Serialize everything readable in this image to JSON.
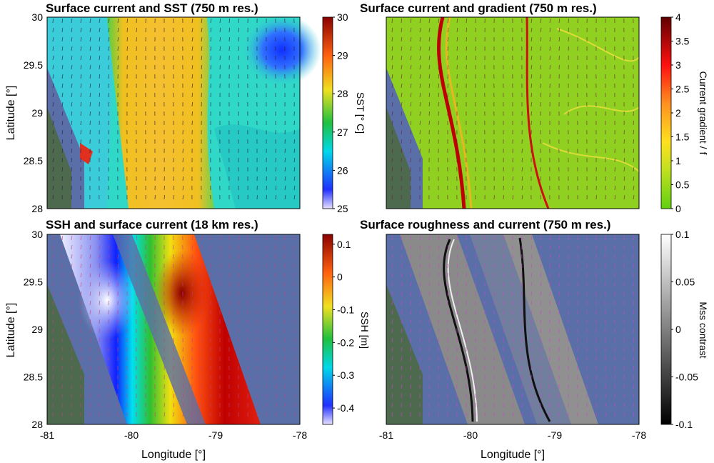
{
  "chart_data": [
    {
      "type": "heatmap",
      "title": "Surface current and SST (750 m res.)",
      "xlabel": "",
      "ylabel": "Latitude [°]",
      "xlim": [
        -81,
        -78
      ],
      "ylim": [
        28,
        30
      ],
      "yticks": [
        "28",
        "28.5",
        "29",
        "29.5",
        "30"
      ],
      "xticks": [],
      "colorbar": {
        "label": "SST [° C]",
        "range": [
          25,
          30
        ],
        "ticks": [
          "25",
          "26",
          "27",
          "28",
          "29",
          "30"
        ],
        "colormap": "jet"
      }
    },
    {
      "type": "heatmap",
      "title": "Surface current and gradient (750 m res.)",
      "xlabel": "",
      "ylabel": "",
      "xlim": [
        -81,
        -78
      ],
      "ylim": [
        28,
        30
      ],
      "yticks": [],
      "xticks": [],
      "colorbar": {
        "label": "Current gradient / f",
        "range": [
          0,
          4
        ],
        "ticks": [
          "0",
          "0.5",
          "1",
          "1.5",
          "2",
          "2.5",
          "3",
          "3.5",
          "4"
        ],
        "colormap": "green-yellow-red"
      }
    },
    {
      "type": "heatmap",
      "title": "SSH and surface current (18 km res.)",
      "xlabel": "Longitude [°]",
      "ylabel": "Latitude [°]",
      "xlim": [
        -81,
        -78
      ],
      "ylim": [
        28,
        30
      ],
      "yticks": [
        "28",
        "28.5",
        "29",
        "29.5",
        "30"
      ],
      "xticks": [
        "-81",
        "-80",
        "-79",
        "-78"
      ],
      "colorbar": {
        "label": "SSH [m]",
        "range": [
          -0.45,
          0.13
        ],
        "ticks": [
          "0.1",
          "0",
          "-0.1",
          "-0.2",
          "-0.3",
          "-0.4"
        ],
        "tick_values": [
          0.1,
          0,
          -0.1,
          -0.2,
          -0.3,
          -0.4
        ],
        "colormap": "jet"
      }
    },
    {
      "type": "heatmap",
      "title": "Surface roughness and current (750 m res.)",
      "xlabel": "Longitude [°]",
      "ylabel": "",
      "xlim": [
        -81,
        -78
      ],
      "ylim": [
        28,
        30
      ],
      "yticks": [],
      "xticks": [
        "-81",
        "-80",
        "-79",
        "-78"
      ],
      "colorbar": {
        "label": "Mss contrast",
        "range": [
          -0.1,
          0.1
        ],
        "ticks": [
          "0.1",
          "0.05",
          "0",
          "-0.05",
          "-0.1"
        ],
        "tick_values": [
          0.1,
          0.05,
          0,
          -0.05,
          -0.1
        ],
        "colormap": "gray"
      }
    }
  ],
  "colors": {
    "land": "#4d6a4f",
    "ocean_background": "#5a6fa8",
    "vector_dark": "#2a1a3a",
    "vector_magenta": "#d040d0"
  }
}
